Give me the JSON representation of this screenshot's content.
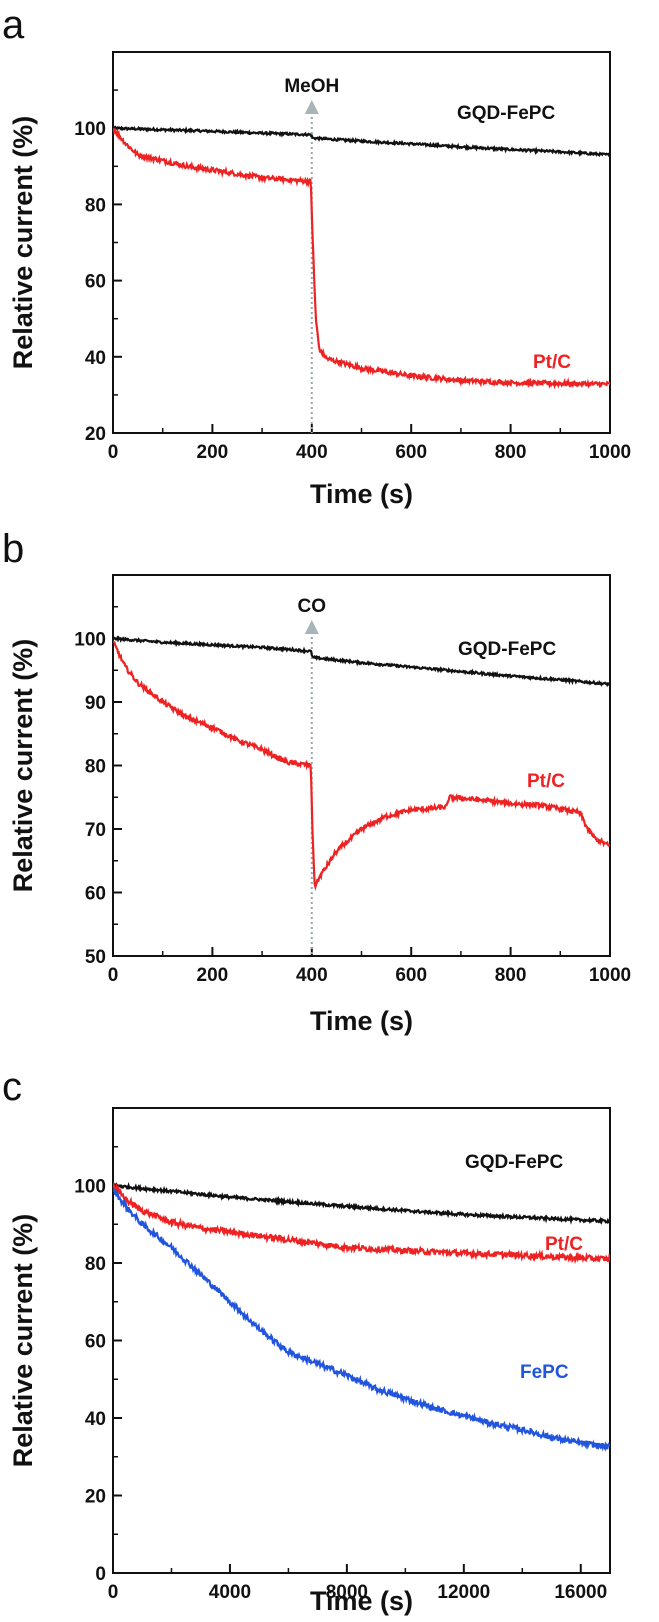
{
  "chart_data": [
    {
      "panel": "a",
      "type": "line",
      "xlabel": "Time (s)",
      "ylabel": "Relative current (%)",
      "xlim": [
        0,
        1000
      ],
      "ylim": [
        20,
        120
      ],
      "xticks": [
        0,
        200,
        400,
        600,
        800,
        1000
      ],
      "yticks": [
        20,
        40,
        60,
        80,
        100
      ],
      "annotation": {
        "label": "MeOH",
        "x": 400
      },
      "series": [
        {
          "name": "GQD-FePC",
          "color": "#111111",
          "points": [
            [
              0,
              100
            ],
            [
              100,
              99.6
            ],
            [
              200,
              99.2
            ],
            [
              300,
              98.7
            ],
            [
              398,
              98.3
            ],
            [
              402,
              97.4
            ],
            [
              500,
              96.6
            ],
            [
              600,
              95.9
            ],
            [
              700,
              95.1
            ],
            [
              800,
              94.4
            ],
            [
              900,
              93.8
            ],
            [
              1000,
              93.0
            ]
          ]
        },
        {
          "name": "Pt/C",
          "color": "#ee2222",
          "points": [
            [
              0,
              100
            ],
            [
              25,
              96
            ],
            [
              50,
              93
            ],
            [
              100,
              91.5
            ],
            [
              150,
              90
            ],
            [
              200,
              89
            ],
            [
              250,
              88
            ],
            [
              300,
              87
            ],
            [
              350,
              86.5
            ],
            [
              398,
              86
            ],
            [
              402,
              70
            ],
            [
              408,
              50
            ],
            [
              415,
              42
            ],
            [
              430,
              39.5
            ],
            [
              500,
              37
            ],
            [
              600,
              35
            ],
            [
              700,
              33.8
            ],
            [
              800,
              33.2
            ],
            [
              900,
              33
            ],
            [
              1000,
              32.8
            ]
          ]
        }
      ]
    },
    {
      "panel": "b",
      "type": "line",
      "xlabel": "Time (s)",
      "ylabel": "Relative current (%)",
      "xlim": [
        0,
        1000
      ],
      "ylim": [
        50,
        110
      ],
      "xticks": [
        0,
        200,
        400,
        600,
        800,
        1000
      ],
      "yticks": [
        50,
        60,
        70,
        80,
        90,
        100
      ],
      "annotation": {
        "label": "CO",
        "x": 400
      },
      "series": [
        {
          "name": "GQD-FePC",
          "color": "#111111",
          "points": [
            [
              0,
              100
            ],
            [
              100,
              99.4
            ],
            [
              200,
              99
            ],
            [
              300,
              98.6
            ],
            [
              398,
              98.0
            ],
            [
              402,
              97
            ],
            [
              500,
              96.2
            ],
            [
              600,
              95.5
            ],
            [
              700,
              94.8
            ],
            [
              800,
              94.1
            ],
            [
              900,
              93.5
            ],
            [
              1000,
              92.8
            ]
          ]
        },
        {
          "name": "Pt/C",
          "color": "#ee2222",
          "points": [
            [
              0,
              99.5
            ],
            [
              25,
              95.5
            ],
            [
              50,
              93
            ],
            [
              100,
              90
            ],
            [
              150,
              87.5
            ],
            [
              200,
              86
            ],
            [
              250,
              84
            ],
            [
              300,
              82.5
            ],
            [
              350,
              80.5
            ],
            [
              398,
              80
            ],
            [
              402,
              68
            ],
            [
              406,
              61
            ],
            [
              420,
              63
            ],
            [
              450,
              66.5
            ],
            [
              500,
              70
            ],
            [
              550,
              72
            ],
            [
              600,
              73
            ],
            [
              650,
              73.3
            ],
            [
              672,
              73.5
            ],
            [
              676,
              75
            ],
            [
              750,
              74.5
            ],
            [
              800,
              74
            ],
            [
              850,
              73.8
            ],
            [
              900,
              73.2
            ],
            [
              940,
              72.5
            ],
            [
              955,
              70
            ],
            [
              970,
              68.5
            ],
            [
              1000,
              67.3
            ]
          ]
        }
      ]
    },
    {
      "panel": "c",
      "type": "line",
      "xlabel": "Time (s)",
      "ylabel": "Relative current (%)",
      "xlim": [
        0,
        17000
      ],
      "ylim": [
        0,
        120
      ],
      "xticks": [
        0,
        4000,
        8000,
        12000,
        16000
      ],
      "yticks": [
        0,
        20,
        40,
        60,
        80,
        100
      ],
      "series": [
        {
          "name": "GQD-FePC",
          "color": "#111111",
          "points": [
            [
              0,
              100
            ],
            [
              2000,
              98.5
            ],
            [
              4000,
              97
            ],
            [
              6000,
              95.8
            ],
            [
              8000,
              94.6
            ],
            [
              9500,
              93.8
            ],
            [
              10000,
              93.5
            ],
            [
              12000,
              92.5
            ],
            [
              14000,
              91.8
            ],
            [
              16000,
              91.1
            ],
            [
              17000,
              90.8
            ]
          ]
        },
        {
          "name": "Pt/C",
          "color": "#ee2222",
          "points": [
            [
              0,
              100
            ],
            [
              500,
              96
            ],
            [
              1000,
              93.5
            ],
            [
              2000,
              90.5
            ],
            [
              3000,
              89
            ],
            [
              4000,
              88
            ],
            [
              6000,
              86
            ],
            [
              8000,
              84
            ],
            [
              10000,
              83.2
            ],
            [
              12000,
              82.5
            ],
            [
              14000,
              82
            ],
            [
              16000,
              81.3
            ],
            [
              17000,
              81
            ]
          ]
        },
        {
          "name": "FePC",
          "color": "#2255dd",
          "points": [
            [
              0,
              99
            ],
            [
              500,
              94
            ],
            [
              1000,
              90
            ],
            [
              2000,
              84
            ],
            [
              3000,
              77
            ],
            [
              4000,
              70
            ],
            [
              5000,
              63
            ],
            [
              6000,
              57
            ],
            [
              7000,
              54
            ],
            [
              8000,
              51
            ],
            [
              9000,
              47.5
            ],
            [
              10000,
              45
            ],
            [
              11000,
              42.5
            ],
            [
              12000,
              40.5
            ],
            [
              13000,
              38.5
            ],
            [
              14000,
              37
            ],
            [
              15000,
              35
            ],
            [
              16000,
              33.5
            ],
            [
              17000,
              32.5
            ]
          ]
        }
      ]
    }
  ]
}
